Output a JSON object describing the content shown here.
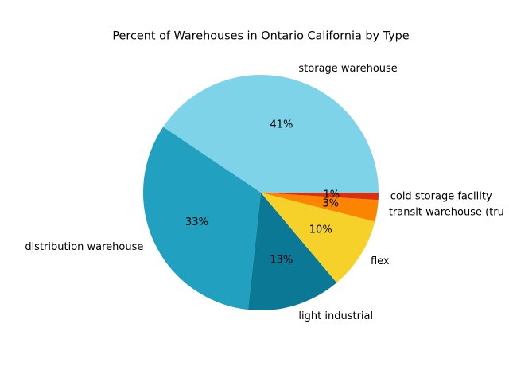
{
  "chart_data": {
    "type": "pie",
    "title": "Percent of Warehouses in Ontario California by Type",
    "categories": [
      "storage warehouse",
      "distribution warehouse",
      "light industrial",
      "flex",
      "transit warehouse (tru",
      "cold storage facility"
    ],
    "values": [
      41,
      33,
      13,
      10,
      3,
      1
    ],
    "percent_labels": [
      "41%",
      "33%",
      "13%",
      "10%",
      "3%",
      "1%"
    ],
    "colors": [
      "#7fd3e8",
      "#22a0c0",
      "#0b7896",
      "#f5d12a",
      "#fc8500",
      "#d83010"
    ],
    "start_angle_deg": 0,
    "direction": "counterclockwise",
    "legend": "none"
  }
}
